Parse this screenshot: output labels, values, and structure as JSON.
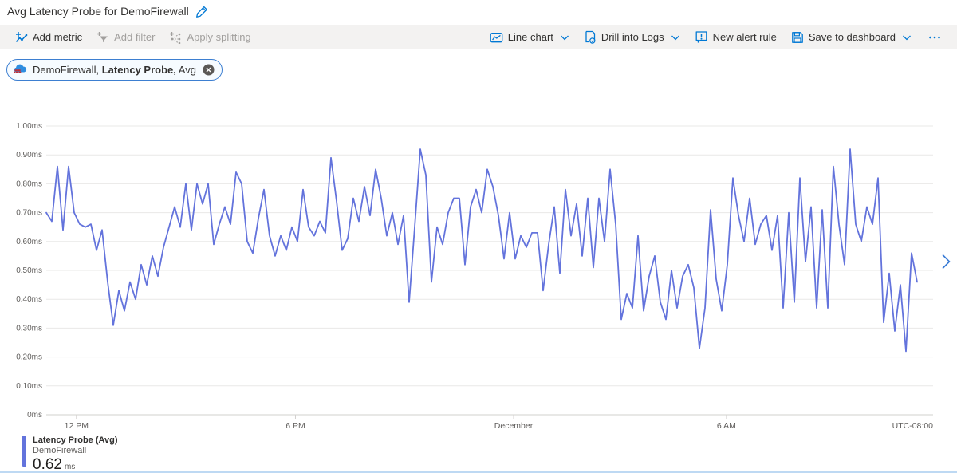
{
  "page": {
    "title": "Avg Latency Probe for DemoFirewall"
  },
  "toolbar": {
    "left": [
      {
        "label": "Add metric",
        "icon": "add-metric-icon",
        "enabled": true,
        "chevron": false,
        "name": "add-metric-button"
      },
      {
        "label": "Add filter",
        "icon": "add-filter-icon",
        "enabled": false,
        "chevron": false,
        "name": "add-filter-button"
      },
      {
        "label": "Apply splitting",
        "icon": "apply-splitting-icon",
        "enabled": false,
        "chevron": false,
        "name": "apply-splitting-button"
      }
    ],
    "right": [
      {
        "label": "Line chart",
        "icon": "line-chart-icon",
        "enabled": true,
        "chevron": true,
        "name": "chart-type-button"
      },
      {
        "label": "Drill into Logs",
        "icon": "drill-into-logs-icon",
        "enabled": true,
        "chevron": true,
        "name": "drill-into-logs-button"
      },
      {
        "label": "New alert rule",
        "icon": "new-alert-rule-icon",
        "enabled": true,
        "chevron": false,
        "name": "new-alert-rule-button"
      },
      {
        "label": "Save to dashboard",
        "icon": "save-to-dashboard-icon",
        "enabled": true,
        "chevron": true,
        "name": "save-to-dashboard-button"
      },
      {
        "label": "",
        "icon": "ellipsis-icon",
        "enabled": true,
        "chevron": false,
        "name": "more-options-button"
      }
    ]
  },
  "metric_pill": {
    "resource": "DemoFirewall, ",
    "metric": "Latency Probe,",
    "aggregation": " Avg",
    "icon": "firewall-icon"
  },
  "chart_data": {
    "type": "line",
    "title": "Avg Latency Probe for DemoFirewall",
    "unit": "ms",
    "ylim": [
      0,
      1
    ],
    "grid": true,
    "legend_position": "bottom-left",
    "y_tick_labels": [
      "1.00ms",
      "0.90ms",
      "0.80ms",
      "0.70ms",
      "0.60ms",
      "0.50ms",
      "0.40ms",
      "0.30ms",
      "0.20ms",
      "0.10ms",
      "0ms"
    ],
    "x_ticks": [
      {
        "label": "12 PM",
        "pos": 0.034
      },
      {
        "label": "6 PM",
        "pos": 0.281
      },
      {
        "label": "December",
        "pos": 0.527
      },
      {
        "label": "6 AM",
        "pos": 0.767
      }
    ],
    "x_right_label": "UTC-08:00",
    "data_x_extent": 0.982,
    "line_color": "#6373dc",
    "series": [
      {
        "name": "Latency Probe (Avg)",
        "resource": "DemoFirewall",
        "aggregation": "Avg",
        "values": [
          0.7,
          0.67,
          0.86,
          0.64,
          0.86,
          0.7,
          0.66,
          0.65,
          0.66,
          0.57,
          0.64,
          0.46,
          0.31,
          0.43,
          0.36,
          0.46,
          0.4,
          0.52,
          0.45,
          0.55,
          0.48,
          0.58,
          0.65,
          0.72,
          0.65,
          0.8,
          0.64,
          0.8,
          0.73,
          0.8,
          0.59,
          0.66,
          0.72,
          0.66,
          0.84,
          0.8,
          0.6,
          0.56,
          0.68,
          0.78,
          0.62,
          0.55,
          0.62,
          0.57,
          0.65,
          0.6,
          0.78,
          0.65,
          0.62,
          0.67,
          0.63,
          0.89,
          0.74,
          0.57,
          0.61,
          0.75,
          0.67,
          0.79,
          0.69,
          0.85,
          0.75,
          0.62,
          0.7,
          0.59,
          0.69,
          0.39,
          0.65,
          0.92,
          0.83,
          0.46,
          0.65,
          0.59,
          0.7,
          0.75,
          0.75,
          0.52,
          0.72,
          0.78,
          0.7,
          0.85,
          0.79,
          0.69,
          0.54,
          0.7,
          0.54,
          0.62,
          0.58,
          0.63,
          0.63,
          0.43,
          0.59,
          0.72,
          0.49,
          0.78,
          0.62,
          0.73,
          0.55,
          0.75,
          0.51,
          0.75,
          0.6,
          0.85,
          0.66,
          0.33,
          0.42,
          0.37,
          0.62,
          0.36,
          0.48,
          0.55,
          0.39,
          0.33,
          0.5,
          0.37,
          0.48,
          0.52,
          0.44,
          0.23,
          0.37,
          0.71,
          0.47,
          0.36,
          0.52,
          0.82,
          0.69,
          0.6,
          0.75,
          0.59,
          0.66,
          0.69,
          0.57,
          0.69,
          0.37,
          0.7,
          0.39,
          0.82,
          0.53,
          0.72,
          0.37,
          0.71,
          0.37,
          0.86,
          0.66,
          0.52,
          0.92,
          0.66,
          0.6,
          0.72,
          0.66,
          0.82,
          0.32,
          0.49,
          0.29,
          0.45,
          0.22,
          0.56,
          0.46
        ]
      }
    ]
  },
  "legend": {
    "metric": "Latency Probe (Avg)",
    "resource": "DemoFirewall",
    "value": "0.62",
    "unit": "ms",
    "color": "#6373dc"
  },
  "colors": {
    "accent_blue": "#0078d4",
    "disabled_gray": "#a19f9d",
    "grid_line": "#e9e8e7",
    "axis_line": "#d2d0ce",
    "tick_text": "#605e5c"
  }
}
